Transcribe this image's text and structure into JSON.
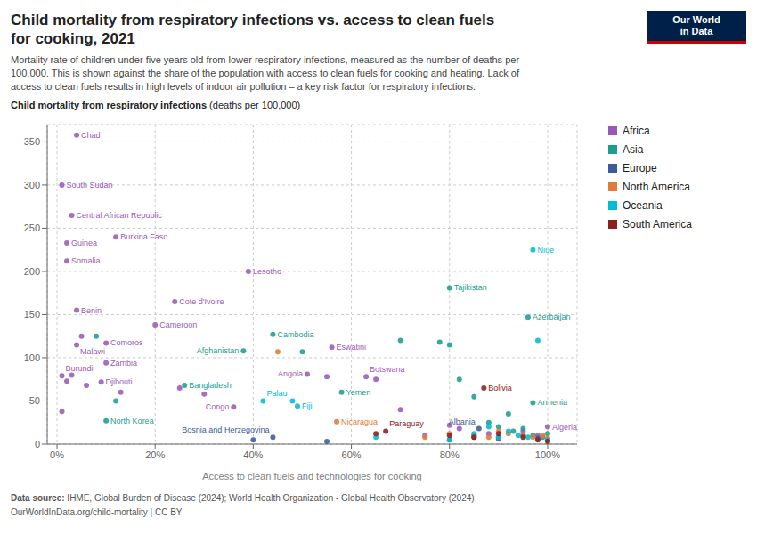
{
  "chart_data": {
    "type": "scatter",
    "title": [
      "Child mortality from respiratory infections vs. access to clean fuels",
      "for cooking, 2021"
    ],
    "subtitle": "Mortality rate of children under five years old from lower respiratory infections, measured as the number of deaths per\n100,000. This is shown against the share of the population with access to clean fuels for cooking and heating. Lack of\naccess to clean fuels results in high levels of indoor air pollution – a key risk factor for respiratory infections.",
    "ylabel": [
      "Child mortality from respiratory infections",
      "(deaths per 100,000)"
    ],
    "xlabel": "Access to clean fuels and technologies for cooking",
    "source": [
      "Data source:",
      "IHME, Global Burden of Disease (2024); World Health Organization - Global Health Observatory (2024)",
      "OurWorldInData.org/child-mortality | CC BY"
    ],
    "logo": [
      "Our World",
      "in Data"
    ],
    "xlim": [
      -0.02,
      1.06
    ],
    "xticks": [
      {
        "value": 0,
        "label": "0%"
      },
      {
        "value": 0.2,
        "label": "20%"
      },
      {
        "value": 0.4,
        "label": "40%"
      },
      {
        "value": 0.6,
        "label": "60%"
      },
      {
        "value": 0.8,
        "label": "80%"
      },
      {
        "value": 1.0,
        "label": "100%"
      }
    ],
    "ylim": [
      0,
      370
    ],
    "yticks": [
      0,
      50,
      100,
      150,
      200,
      250,
      300,
      350
    ],
    "grid": true,
    "legend": "right",
    "series": [
      {
        "name": "Africa",
        "color": "#9B59B6",
        "x": [
          0.04,
          0.01,
          0.03,
          0.02,
          0.02,
          0.12,
          0.04,
          0.04,
          0.1,
          0.1,
          0.01,
          0.09,
          0.2,
          0.24,
          0.39,
          0.51,
          0.56,
          0.63,
          1.0,
          0.36,
          0.01,
          0.02,
          0.03,
          0.05,
          0.06,
          0.13,
          0.25,
          0.3,
          0.55,
          0.65,
          0.7,
          0.75,
          0.8,
          0.82,
          0.85,
          0.88,
          0.9,
          0.95,
          0.98,
          1.0
        ],
        "values": [
          358,
          300,
          265,
          233,
          212,
          240,
          155,
          115,
          117,
          94,
          79,
          72,
          138,
          165,
          200,
          81,
          112,
          78,
          20,
          43,
          38,
          73,
          80,
          125,
          68,
          60,
          65,
          58,
          78,
          75,
          40,
          10,
          22,
          18,
          10,
          12,
          8,
          15,
          10,
          5
        ],
        "labels": [
          "Chad",
          "South Sudan",
          "Central African Republic",
          "Guinea",
          "Somalia",
          "Burkina Faso",
          "Benin",
          "Malawi",
          "Comoros",
          "Zambia",
          "Burundi",
          "Djibouti",
          "Cameroon",
          "Cote d'Ivoire",
          "Lesotho",
          "Angola",
          "Eswatini",
          "Botswana",
          "Algeria",
          "Congo",
          null,
          null,
          null,
          null,
          null,
          null,
          null,
          null,
          null,
          null,
          null,
          null,
          null,
          null,
          null,
          null,
          null,
          null,
          null,
          null
        ]
      },
      {
        "name": "Asia",
        "color": "#1A9E8F",
        "x": [
          0.1,
          0.26,
          0.38,
          0.44,
          0.8,
          0.96,
          0.97,
          0.58,
          0.08,
          0.12,
          0.5,
          0.7,
          0.78,
          0.8,
          0.82,
          0.85,
          0.88,
          0.9,
          0.92,
          0.93,
          0.95,
          0.97,
          0.99,
          1.0
        ],
        "values": [
          27,
          68,
          108,
          127,
          181,
          147,
          48,
          60,
          125,
          50,
          107,
          120,
          118,
          115,
          75,
          55,
          25,
          20,
          35,
          15,
          18,
          10,
          8,
          12
        ],
        "labels": [
          "North Korea",
          "Bangladesh",
          "Afghanistan",
          "Cambodia",
          "Tajikistan",
          "Azerbaijan",
          "Armenia",
          "Yemen",
          null,
          null,
          null,
          null,
          null,
          null,
          null,
          null,
          null,
          null,
          null,
          null,
          null,
          null,
          null,
          null
        ]
      },
      {
        "name": "Europe",
        "color": "#3D5A99",
        "x": [
          0.44,
          0.86,
          0.4,
          0.55,
          0.8,
          0.85,
          0.9,
          0.95,
          0.98,
          1.0
        ],
        "values": [
          8,
          18,
          5,
          3,
          5,
          8,
          6,
          10,
          7,
          5
        ],
        "labels": [
          "Bosnia and Herzegovina",
          "Albania",
          null,
          null,
          null,
          null,
          null,
          null,
          null,
          null
        ]
      },
      {
        "name": "North America",
        "color": "#E07B39",
        "x": [
          0.57,
          0.45,
          0.75,
          0.8,
          0.85,
          0.88,
          0.9,
          0.92,
          0.95,
          0.97,
          0.99,
          1.0
        ],
        "values": [
          26,
          107,
          8,
          12,
          10,
          8,
          15,
          12,
          10,
          8,
          10,
          7
        ],
        "labels": [
          "Nicaragua",
          null,
          null,
          null,
          null,
          null,
          null,
          null,
          null,
          null,
          null,
          null
        ]
      },
      {
        "name": "Oceania",
        "color": "#00BCD4",
        "x": [
          0.97,
          0.42,
          0.49,
          0.48,
          0.65,
          0.8,
          0.85,
          0.88,
          0.9,
          0.92,
          0.94,
          0.96,
          0.98,
          1.0
        ],
        "values": [
          225,
          50,
          44,
          50,
          8,
          5,
          12,
          20,
          8,
          15,
          10,
          8,
          120,
          5
        ],
        "labels": [
          "Niue",
          "Palau",
          "Fiji",
          null,
          null,
          null,
          null,
          null,
          null,
          null,
          null,
          null,
          null,
          null
        ]
      },
      {
        "name": "South America",
        "color": "#8B2020",
        "x": [
          0.87,
          0.67,
          0.65,
          0.8,
          0.85,
          0.9,
          0.95,
          0.98,
          1.0
        ],
        "values": [
          65,
          15,
          12,
          10,
          8,
          12,
          8,
          5,
          3
        ],
        "labels": [
          "Bolivia",
          "Paraguay",
          null,
          null,
          null,
          null,
          null,
          null,
          null
        ]
      }
    ]
  }
}
